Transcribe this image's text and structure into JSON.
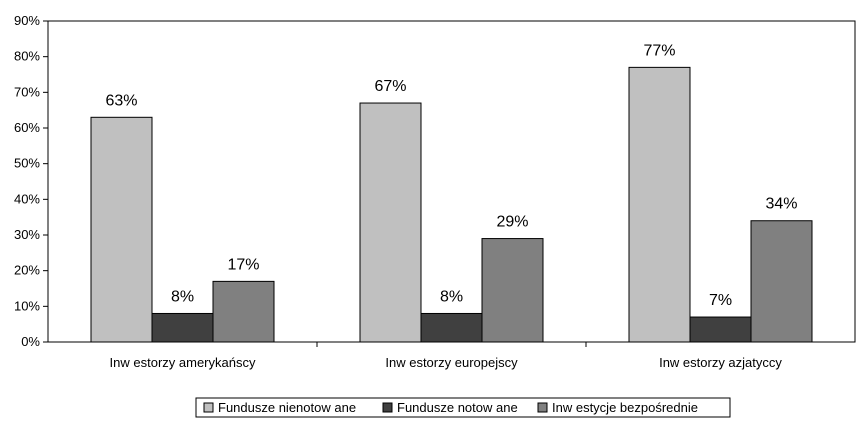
{
  "chart_data": {
    "type": "bar",
    "categories": [
      "Inw estorzy amerykańscy",
      "Inw estorzy europejscy",
      "Inw estorzy azjatyccy"
    ],
    "series": [
      {
        "name": "Fundusze nienotow ane",
        "values": [
          63,
          67,
          77
        ],
        "labels": [
          "63%",
          "67%",
          "77%"
        ],
        "color": "#c0c0c0"
      },
      {
        "name": "Fundusze notow ane",
        "values": [
          8,
          8,
          7
        ],
        "labels": [
          "8%",
          "8%",
          "7%"
        ],
        "color": "#404040"
      },
      {
        "name": "Inw estycje bezpośrednie",
        "values": [
          17,
          29,
          34
        ],
        "labels": [
          "17%",
          "29%",
          "34%"
        ],
        "color": "#808080"
      }
    ],
    "yticks": [
      "0%",
      "10%",
      "20%",
      "30%",
      "40%",
      "50%",
      "60%",
      "70%",
      "80%",
      "90%"
    ],
    "ylim": [
      0,
      90
    ],
    "grid": false,
    "legend": "bottom"
  }
}
